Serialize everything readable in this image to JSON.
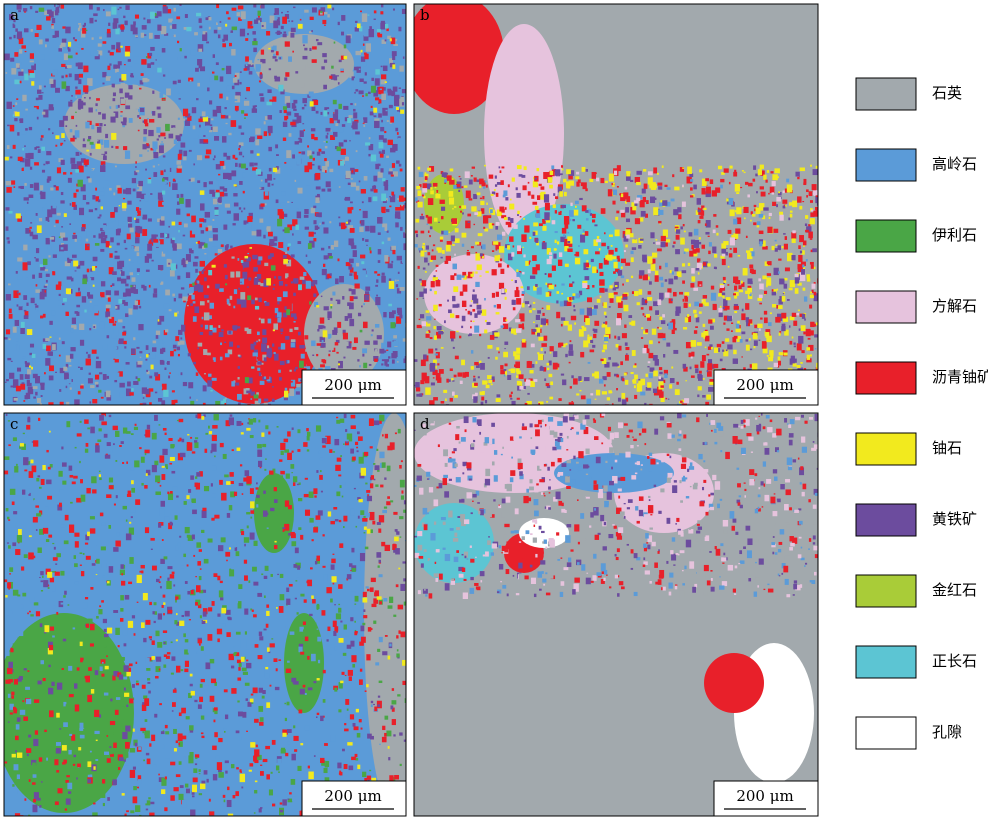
{
  "panels": [
    {
      "label": "a",
      "scale_bar": "200 μm"
    },
    {
      "label": "b",
      "scale_bar": "200 μm"
    },
    {
      "label": "c",
      "scale_bar": "200 μm"
    },
    {
      "label": "d",
      "scale_bar": "200 μm"
    }
  ],
  "legend": [
    {
      "label": "石英",
      "color": "#a2a9ad"
    },
    {
      "label": "高岭石",
      "color": "#5b9bd8"
    },
    {
      "label": "伊利石",
      "color": "#4aa646"
    },
    {
      "label": "方解石",
      "color": "#e6c3dd"
    },
    {
      "label": "沥青铀矿",
      "color": "#e8202a"
    },
    {
      "label": "铀石",
      "color": "#f2ea1e"
    },
    {
      "label": "黄铁矿",
      "color": "#6c4c9e"
    },
    {
      "label": "金红石",
      "color": "#a9cc38"
    },
    {
      "label": "正长石",
      "color": "#5cc5d3"
    },
    {
      "label": "孔隙",
      "color": "#ffffff"
    }
  ]
}
